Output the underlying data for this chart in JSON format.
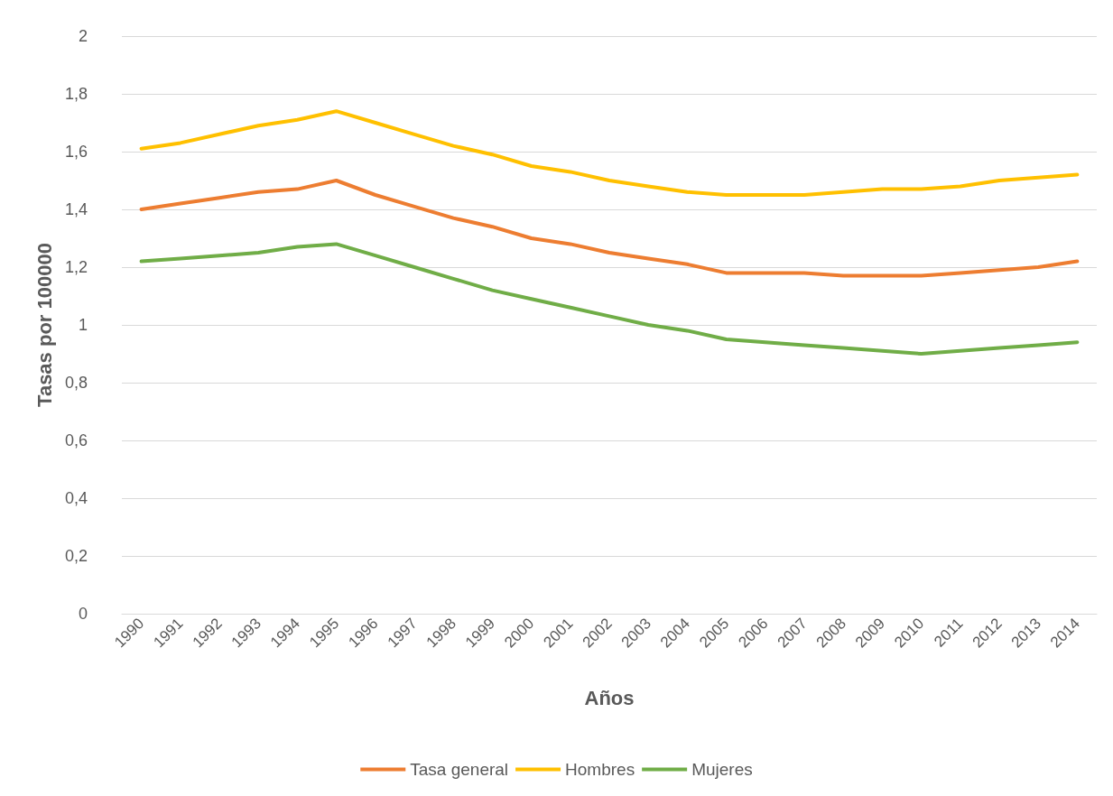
{
  "chart_data": {
    "type": "line",
    "xlabel": "Años",
    "ylabel": "Tasas por 100000",
    "categories": [
      "1990",
      "1991",
      "1992",
      "1993",
      "1994",
      "1995",
      "1996",
      "1997",
      "1998",
      "1999",
      "2000",
      "2001",
      "2002",
      "2003",
      "2004",
      "2005",
      "2006",
      "2007",
      "2008",
      "2009",
      "2010",
      "2011",
      "2012",
      "2013",
      "2014"
    ],
    "series": [
      {
        "name": "Tasa general",
        "color": "#ed7d31",
        "values": [
          1.4,
          1.42,
          1.44,
          1.46,
          1.47,
          1.5,
          1.45,
          1.41,
          1.37,
          1.34,
          1.3,
          1.28,
          1.25,
          1.23,
          1.21,
          1.18,
          1.18,
          1.18,
          1.17,
          1.17,
          1.17,
          1.18,
          1.19,
          1.2,
          1.22
        ]
      },
      {
        "name": "Hombres",
        "color": "#ffc000",
        "values": [
          1.61,
          1.63,
          1.66,
          1.69,
          1.71,
          1.74,
          1.7,
          1.66,
          1.62,
          1.59,
          1.55,
          1.53,
          1.5,
          1.48,
          1.46,
          1.45,
          1.45,
          1.45,
          1.46,
          1.47,
          1.47,
          1.48,
          1.5,
          1.51,
          1.52
        ]
      },
      {
        "name": "Mujeres",
        "color": "#70ad47",
        "values": [
          1.22,
          1.23,
          1.24,
          1.25,
          1.27,
          1.28,
          1.24,
          1.2,
          1.16,
          1.12,
          1.09,
          1.06,
          1.03,
          1.0,
          0.98,
          0.95,
          0.94,
          0.93,
          0.92,
          0.91,
          0.9,
          0.91,
          0.92,
          0.93,
          0.94
        ]
      }
    ],
    "ylim": [
      0,
      2
    ],
    "yticks": [
      0,
      {
        "value": 0.2,
        "label": "0,2"
      },
      {
        "value": 0.4,
        "label": "0,4"
      },
      {
        "value": 0.6,
        "label": "0,6"
      },
      {
        "value": 0.8,
        "label": "0,8"
      },
      1,
      {
        "value": 1.2,
        "label": "1,2"
      },
      {
        "value": 1.4,
        "label": "1,4"
      },
      {
        "value": 1.6,
        "label": "1,6"
      },
      {
        "value": 1.8,
        "label": "1,8"
      },
      2
    ],
    "grid": "y",
    "legend": "bottom",
    "marker": "none",
    "line_style": "solid"
  }
}
